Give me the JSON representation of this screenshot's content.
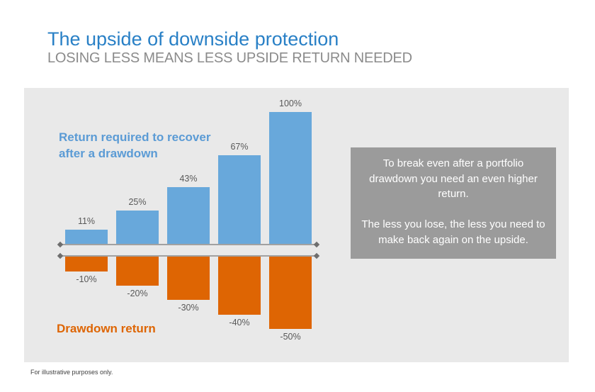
{
  "page": {
    "title": "The upside of downside protection",
    "subtitle": "LOSING LESS MEANS LESS UPSIDE RETURN NEEDED",
    "footnote": "For illustrative purposes only."
  },
  "colors": {
    "title_blue": "#2980C6",
    "subtitle_gray": "#8B8B8B",
    "panel_bg": "#E9E9E9",
    "bar_blue": "#68A8DB",
    "bar_orange": "#DE6503",
    "note_blue": "#5B9BD5",
    "note_orange": "#DE6503",
    "value_label_gray": "#595959",
    "axis_line_gray": "#A1A1A1",
    "axis_marker_gray": "#6E6E6E",
    "callout_bg": "#9B9B9B",
    "callout_text": "#FFFFFF",
    "footnote_gray": "#404040"
  },
  "chart_data": {
    "type": "bar",
    "title": "",
    "xlabel": "",
    "ylabel": "",
    "categories": [
      "-10%",
      "-20%",
      "-30%",
      "-40%",
      "-50%"
    ],
    "series": [
      {
        "name": "Return required to recover after a drawdown",
        "values": [
          11,
          25,
          43,
          67,
          100
        ],
        "data_labels": [
          "11%",
          "25%",
          "43%",
          "67%",
          "100%"
        ]
      },
      {
        "name": "Drawdown return",
        "values": [
          -10,
          -20,
          -30,
          -40,
          -50
        ],
        "data_labels": [
          "-10%",
          "-20%",
          "-30%",
          "-40%",
          "-50%"
        ]
      }
    ],
    "annotations": {
      "recovery_note": "Return required to recover\nafter a drawdown",
      "drawdown_note": "Drawdown return"
    },
    "legend_position": "none",
    "grid": false,
    "ylim": [
      -50,
      100
    ],
    "axis_style": "two horizontal baselines with diamond end markers, positive bars above, negative bars below"
  },
  "callout": {
    "paragraph1": "To break even after a portfolio drawdown you need an even higher return.",
    "paragraph2": "The less you lose, the less you need to make back again on the upside."
  }
}
